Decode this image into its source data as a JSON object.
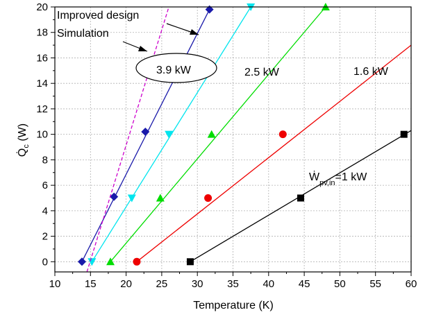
{
  "chart_data": {
    "type": "line",
    "xlabel": "Temperature (K)",
    "ylabel": "Q̇c (W)",
    "ylabel_main": "Q̇",
    "ylabel_sub": "c",
    "ylabel_unit": " (W)",
    "xlim": [
      10,
      60
    ],
    "ylim": [
      -0.8,
      20
    ],
    "grid": true,
    "x_ticks": [
      10,
      15,
      20,
      25,
      30,
      35,
      40,
      45,
      50,
      55,
      60
    ],
    "y_ticks": [
      0,
      2,
      4,
      6,
      8,
      10,
      12,
      14,
      16,
      18,
      20
    ],
    "series": [
      {
        "name": "Ẇpv,in=1 kW",
        "color": "#000000",
        "marker": "square",
        "x": [
          29.0,
          44.5,
          59.0
        ],
        "y": [
          0,
          5,
          10
        ],
        "line_x": [
          29.0,
          60.0
        ],
        "line_y": [
          0,
          10.3
        ]
      },
      {
        "name": "1.6 kW",
        "color": "#ee0000",
        "marker": "circle",
        "x": [
          21.5,
          31.5,
          42.0
        ],
        "y": [
          0,
          5,
          10
        ],
        "line_x": [
          21.5,
          60.0
        ],
        "line_y": [
          0,
          17.0
        ]
      },
      {
        "name": "2.5 kW",
        "color": "#00dd00",
        "marker": "triangle-up",
        "x": [
          17.8,
          24.8,
          32.0,
          48.0
        ],
        "y": [
          0,
          5,
          10,
          20
        ],
        "line_x": [
          17.8,
          48.0
        ],
        "line_y": [
          0,
          20
        ]
      },
      {
        "name": "",
        "color": "#00e5ee",
        "marker": "triangle-down",
        "x": [
          15.2,
          20.8,
          26.0,
          37.5
        ],
        "y": [
          0,
          5,
          10,
          20
        ],
        "line_x": [
          15.2,
          37.5
        ],
        "line_y": [
          0,
          20
        ]
      },
      {
        "name": "3.9 kW",
        "color": "#1a1aaa",
        "marker": "diamond",
        "x": [
          13.8,
          18.3,
          22.7,
          31.7
        ],
        "y": [
          0,
          5.1,
          10.2,
          19.8
        ],
        "line_x": [
          13.8,
          31.7
        ],
        "line_y": [
          0,
          19.8
        ]
      },
      {
        "name": "Simulation",
        "color": "#cc00cc",
        "marker": "none",
        "dashed": true,
        "x": [],
        "y": [],
        "line_x": [
          14.5,
          26.0
        ],
        "line_y": [
          -0.8,
          20
        ]
      }
    ],
    "annotations": {
      "improved_design": "Improved design",
      "simulation": "Simulation",
      "kw_3_9": "3.9 kW",
      "kw_2_5": "2.5 kW",
      "kw_1_6": "1.6 kW",
      "w_main": "Ẇ",
      "w_sub": "pv,in",
      "w_rest": "=1 kW"
    }
  }
}
